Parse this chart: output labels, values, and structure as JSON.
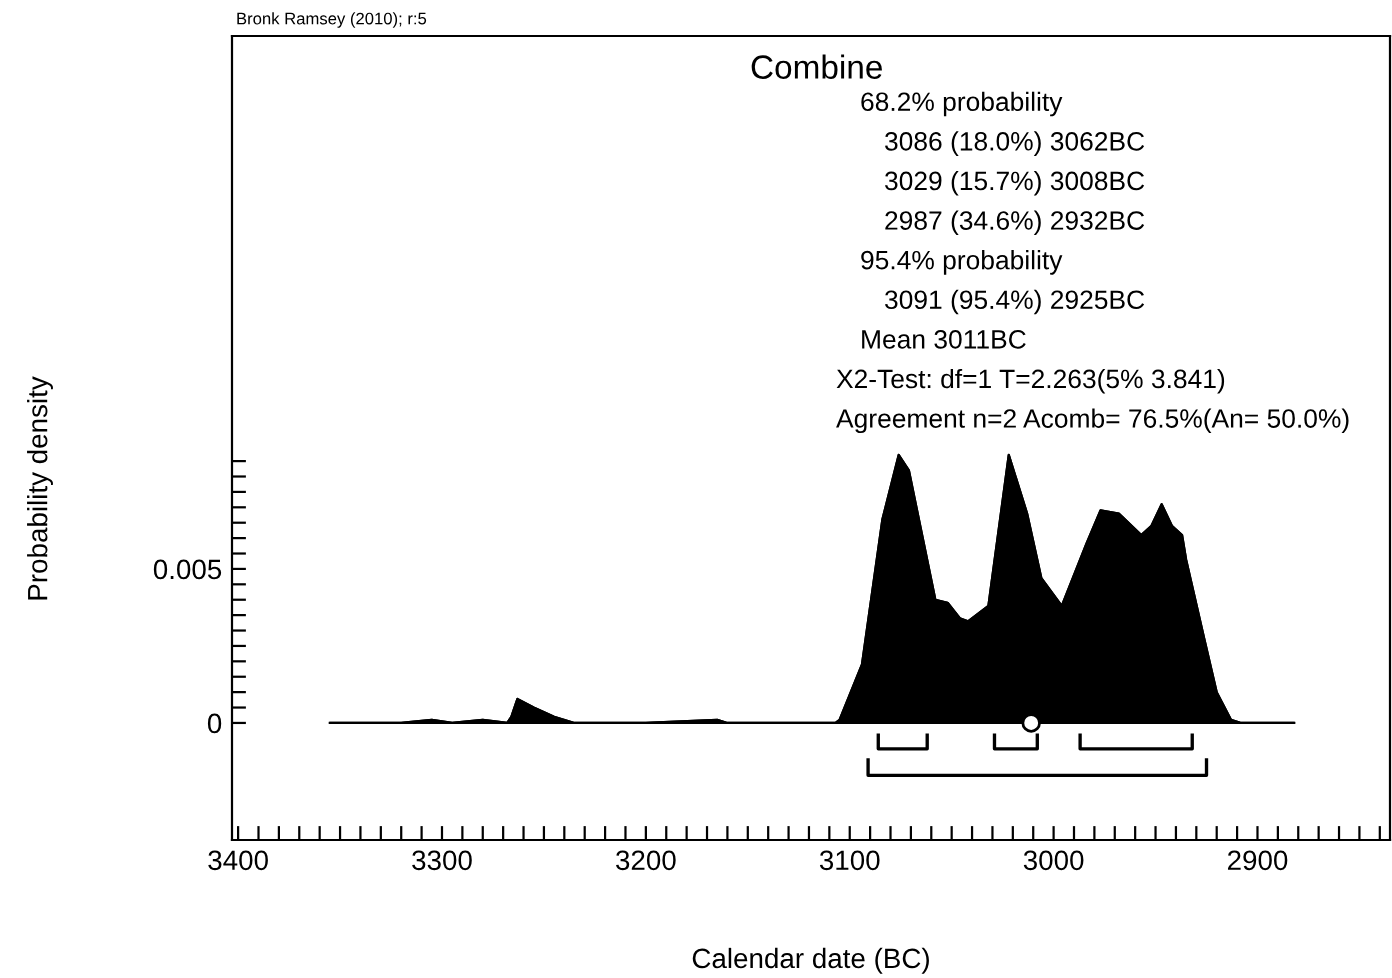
{
  "chart_data": {
    "type": "area",
    "title": "Combine",
    "xlabel": "Calendar date (BC)",
    "ylabel": "Probability density",
    "annotations": [
      "68.2% probability",
      "3086 (18.0%) 3062BC",
      "3029 (15.7%) 3008BC",
      "2987 (34.6%) 2932BC",
      "95.4% probability",
      "3091 (95.4%) 2925BC",
      "Mean 3011BC",
      "X2-Test: df=1 T=2.263(5% 3.841)",
      "Agreement n=2 Acomb= 76.5%(An= 50.0%)",
      "Bronk Ramsey (2010); r:5"
    ],
    "series": [
      {
        "color": "#000000",
        "x": [
          3355,
          3320,
          3305,
          3295,
          3280,
          3268,
          3266,
          3263,
          3255,
          3245,
          3235,
          3200,
          3165,
          3160,
          3107,
          3105,
          3094,
          3084,
          3076,
          3071,
          3058,
          3052,
          3046,
          3042,
          3032,
          3022,
          3013,
          3006,
          2996,
          2984,
          2977,
          2968,
          2957,
          2952,
          2947,
          2942,
          2937,
          2935,
          2926,
          2920,
          2913,
          2908,
          2882
        ],
        "values": [
          0,
          0,
          0.0001,
          0,
          0.0001,
          0,
          0.0002,
          0.00078,
          0.0005,
          0.0002,
          0,
          0,
          0.0001,
          0,
          0,
          0.0001,
          0.0019,
          0.0066,
          0.0087,
          0.0082,
          0.004,
          0.0039,
          0.0034,
          0.0033,
          0.0038,
          0.0087,
          0.0068,
          0.0047,
          0.0038,
          0.0058,
          0.0069,
          0.0068,
          0.0061,
          0.0064,
          0.0071,
          0.0064,
          0.0061,
          0.0053,
          0.0027,
          0.001,
          0.0001,
          0,
          0
        ]
      },
      {
        "type": "line",
        "color": "#000000",
        "x": [
          3086,
          3086,
          3062,
          3062
        ],
        "values": [
          -0.0004,
          -0.00084,
          -0.00084,
          -0.0004
        ]
      },
      {
        "type": "line",
        "color": "#000000",
        "x": [
          3029,
          3029,
          3008,
          3008
        ],
        "values": [
          -0.0004,
          -0.00084,
          -0.00084,
          -0.0004
        ]
      },
      {
        "type": "line",
        "color": "#000000",
        "x": [
          2987,
          2987,
          2932,
          2932
        ],
        "values": [
          -0.0004,
          -0.00084,
          -0.00084,
          -0.0004
        ]
      },
      {
        "type": "line",
        "color": "#000000",
        "x": [
          3091,
          3091,
          2925,
          2925
        ],
        "values": [
          -0.0012,
          -0.0017,
          -0.0017,
          -0.0012
        ]
      },
      {
        "type": "scatter",
        "color": "#ffffff",
        "marker": "circle",
        "x": [
          3011
        ],
        "values": [
          0
        ]
      }
    ],
    "xlim": [
      3403,
      2835
    ],
    "ylim": [
      -0.0038,
      0.0223
    ],
    "xticks": [
      3400,
      {
        "value": 3390,
        "label": null
      },
      {
        "value": 3380,
        "label": null
      },
      {
        "value": 3370,
        "label": null
      },
      {
        "value": 3360,
        "label": null
      },
      {
        "value": 3350,
        "label": null
      },
      {
        "value": 3340,
        "label": null
      },
      {
        "value": 3330,
        "label": null
      },
      {
        "value": 3320,
        "label": null
      },
      {
        "value": 3310,
        "label": null
      },
      3300,
      {
        "value": 3290,
        "label": null
      },
      {
        "value": 3280,
        "label": null
      },
      {
        "value": 3270,
        "label": null
      },
      {
        "value": 3260,
        "label": null
      },
      {
        "value": 3250,
        "label": null
      },
      {
        "value": 3240,
        "label": null
      },
      {
        "value": 3230,
        "label": null
      },
      {
        "value": 3220,
        "label": null
      },
      {
        "value": 3210,
        "label": null
      },
      3200,
      {
        "value": 3190,
        "label": null
      },
      {
        "value": 3180,
        "label": null
      },
      {
        "value": 3170,
        "label": null
      },
      {
        "value": 3160,
        "label": null
      },
      {
        "value": 3150,
        "label": null
      },
      {
        "value": 3140,
        "label": null
      },
      {
        "value": 3130,
        "label": null
      },
      {
        "value": 3120,
        "label": null
      },
      {
        "value": 3110,
        "label": null
      },
      3100,
      {
        "value": 3090,
        "label": null
      },
      {
        "value": 3080,
        "label": null
      },
      {
        "value": 3070,
        "label": null
      },
      {
        "value": 3060,
        "label": null
      },
      {
        "value": 3050,
        "label": null
      },
      {
        "value": 3040,
        "label": null
      },
      {
        "value": 3030,
        "label": null
      },
      {
        "value": 3020,
        "label": null
      },
      {
        "value": 3010,
        "label": null
      },
      3000,
      {
        "value": 2990,
        "label": null
      },
      {
        "value": 2980,
        "label": null
      },
      {
        "value": 2970,
        "label": null
      },
      {
        "value": 2960,
        "label": null
      },
      {
        "value": 2950,
        "label": null
      },
      {
        "value": 2940,
        "label": null
      },
      {
        "value": 2930,
        "label": null
      },
      {
        "value": 2920,
        "label": null
      },
      {
        "value": 2910,
        "label": null
      },
      2900,
      {
        "value": 2890,
        "label": null
      },
      {
        "value": 2880,
        "label": null
      },
      {
        "value": 2870,
        "label": null
      },
      {
        "value": 2860,
        "label": null
      },
      {
        "value": 2850,
        "label": null
      },
      {
        "value": 2840,
        "label": null
      }
    ],
    "yticks": [
      0,
      {
        "value": 0.0005,
        "label": null
      },
      {
        "value": 0.001,
        "label": null
      },
      {
        "value": 0.0015,
        "label": null
      },
      {
        "value": 0.002,
        "label": null
      },
      {
        "value": 0.0025,
        "label": null
      },
      {
        "value": 0.003,
        "label": null
      },
      {
        "value": 0.0035,
        "label": null
      },
      {
        "value": 0.004,
        "label": null
      },
      {
        "value": 0.0045,
        "label": null
      },
      0.005,
      {
        "value": 0.0055,
        "label": null
      },
      {
        "value": 0.006,
        "label": null
      },
      {
        "value": 0.0065,
        "label": null
      },
      {
        "value": 0.007,
        "label": null
      },
      {
        "value": 0.0075,
        "label": null
      },
      {
        "value": 0.008,
        "label": null
      },
      {
        "value": 0.0085,
        "label": null
      }
    ],
    "grid": false,
    "legend": false
  }
}
